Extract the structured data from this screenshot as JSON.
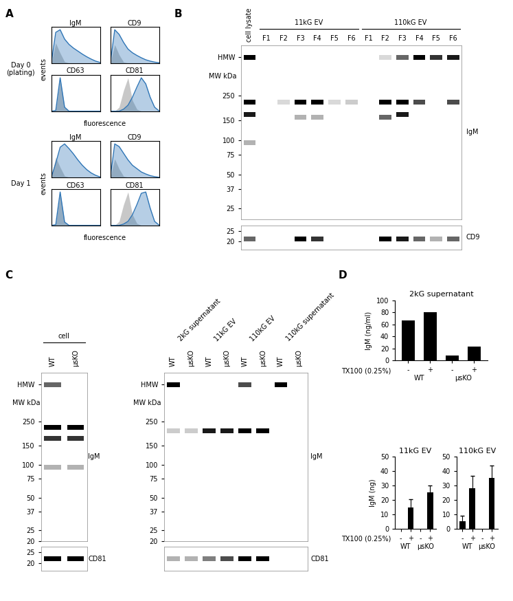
{
  "panel_labels": [
    "A",
    "B",
    "C",
    "D"
  ],
  "A": {
    "xlabel": "fluorescence",
    "ylabel": "events",
    "tick_labels": false,
    "color": "#2e75b6",
    "control_color": "#bfbfbf",
    "days": [
      {
        "label": "Day 0\n(plating)",
        "histograms": [
          {
            "title": "IgM",
            "values": [
              0,
              92,
              100,
              72,
              56,
              45,
              36,
              27,
              19,
              12,
              6,
              2
            ],
            "control": [
              0,
              60,
              30,
              4,
              0,
              0,
              0,
              0,
              0,
              0,
              0,
              0
            ]
          },
          {
            "title": "CD9",
            "values": [
              0,
              100,
              86,
              62,
              42,
              31,
              23,
              16,
              10,
              6,
              3,
              1
            ],
            "control": [
              0,
              55,
              25,
              3,
              0,
              0,
              0,
              0,
              0,
              0,
              0,
              0
            ]
          },
          {
            "title": "CD63",
            "values": [
              0,
              2,
              100,
              12,
              0,
              0,
              0,
              0,
              0,
              0,
              0,
              0
            ],
            "control": [
              0,
              2,
              95,
              10,
              0,
              0,
              0,
              0,
              0,
              0,
              0,
              0
            ]
          },
          {
            "title": "CD81",
            "values": [
              0,
              0,
              0,
              6,
              18,
              42,
              72,
              100,
              82,
              42,
              12,
              1
            ],
            "control": [
              0,
              0,
              12,
              62,
              100,
              32,
              6,
              0,
              0,
              0,
              0,
              0
            ]
          }
        ]
      },
      {
        "label": "Day 1",
        "histograms": [
          {
            "title": "IgM",
            "values": [
              0,
              42,
              90,
              100,
              86,
              70,
              52,
              36,
              23,
              13,
              6,
              1
            ],
            "control": [
              0,
              60,
              30,
              4,
              0,
              0,
              0,
              0,
              0,
              0,
              0,
              0
            ]
          },
          {
            "title": "CD9",
            "values": [
              0,
              100,
              92,
              72,
              52,
              36,
              26,
              16,
              10,
              5,
              2,
              0
            ],
            "control": [
              0,
              55,
              25,
              3,
              0,
              0,
              0,
              0,
              0,
              0,
              0,
              0
            ]
          },
          {
            "title": "CD63",
            "values": [
              0,
              2,
              100,
              10,
              0,
              0,
              0,
              0,
              0,
              0,
              0,
              0
            ],
            "control": [
              0,
              2,
              96,
              9,
              0,
              0,
              0,
              0,
              0,
              0,
              0,
              0
            ]
          },
          {
            "title": "CD81",
            "values": [
              0,
              0,
              0,
              4,
              12,
              32,
              62,
              96,
              100,
              52,
              12,
              1
            ],
            "control": [
              0,
              0,
              12,
              62,
              100,
              32,
              6,
              0,
              0,
              0,
              0,
              0
            ]
          }
        ]
      }
    ]
  },
  "B": {
    "mw_label": "MW kDa",
    "lane_groups": [
      {
        "lanes": [
          "cell lysate"
        ]
      },
      {
        "label": "11kG EV",
        "lanes": [
          "F1",
          "F2",
          "F3",
          "F4",
          "F5",
          "F6"
        ]
      },
      {
        "label": "110kG EV",
        "lanes": [
          "F1",
          "F2",
          "F3",
          "F4",
          "F5",
          "F6"
        ]
      }
    ],
    "blots": [
      {
        "target": "IgM",
        "mw_range": [
          20,
          700
        ],
        "markers": [
          "HMW",
          250,
          150,
          100,
          75,
          50,
          37,
          25
        ],
        "bands": [
          [
            {
              "mw": "HMW",
              "intensity": 1
            },
            {
              "mw": 220,
              "intensity": 1
            },
            {
              "mw": 170,
              "intensity": 0.9
            },
            {
              "mw": 95,
              "intensity": 0.3
            }
          ],
          [],
          [
            {
              "mw": 220,
              "intensity": 0.15
            }
          ],
          [
            {
              "mw": 220,
              "intensity": 1
            },
            {
              "mw": 160,
              "intensity": 0.3
            }
          ],
          [
            {
              "mw": 220,
              "intensity": 1
            },
            {
              "mw": 160,
              "intensity": 0.3
            }
          ],
          [
            {
              "mw": 220,
              "intensity": 0.15
            }
          ],
          [
            {
              "mw": 220,
              "intensity": 0.2
            }
          ],
          [],
          [
            {
              "mw": "HMW",
              "intensity": 0.15
            },
            {
              "mw": 220,
              "intensity": 1
            },
            {
              "mw": 160,
              "intensity": 0.6
            }
          ],
          [
            {
              "mw": "HMW",
              "intensity": 0.6
            },
            {
              "mw": 220,
              "intensity": 1
            },
            {
              "mw": 170,
              "intensity": 0.9
            }
          ],
          [
            {
              "mw": "HMW",
              "intensity": 1
            },
            {
              "mw": 220,
              "intensity": 0.7
            }
          ],
          [
            {
              "mw": "HMW",
              "intensity": 0.8
            }
          ],
          [
            {
              "mw": "HMW",
              "intensity": 0.9
            },
            {
              "mw": 220,
              "intensity": 0.7
            }
          ]
        ]
      },
      {
        "target": "CD9",
        "mw_range": [
          17,
          28
        ],
        "markers": [
          25,
          20
        ],
        "bands": [
          [
            {
              "mw": 21,
              "intensity": 0.6
            }
          ],
          [],
          [],
          [
            {
              "mw": 21,
              "intensity": 1
            }
          ],
          [
            {
              "mw": 21,
              "intensity": 0.8
            }
          ],
          [],
          [],
          [],
          [
            {
              "mw": 21,
              "intensity": 1
            }
          ],
          [
            {
              "mw": 21,
              "intensity": 0.9
            }
          ],
          [
            {
              "mw": 21,
              "intensity": 0.6
            }
          ],
          [
            {
              "mw": 21,
              "intensity": 0.3
            }
          ],
          [
            {
              "mw": 21,
              "intensity": 0.6
            }
          ]
        ]
      }
    ]
  },
  "C": [
    {
      "mw_label": "MW kDa",
      "lane_groups": [
        {
          "label": "cell",
          "lanes": [
            "WT",
            "μsKO"
          ]
        }
      ],
      "blots": [
        {
          "target": "IgM",
          "mw_range": [
            20,
            700
          ],
          "markers": [
            "HMW",
            250,
            150,
            100,
            75,
            50,
            37,
            25,
            20
          ],
          "bands": [
            [
              {
                "mw": "HMW",
                "intensity": 0.6
              },
              {
                "mw": 220,
                "intensity": 1
              },
              {
                "mw": 175,
                "intensity": 0.8
              },
              {
                "mw": 95,
                "intensity": 0.3
              }
            ],
            [
              {
                "mw": 220,
                "intensity": 1
              },
              {
                "mw": 175,
                "intensity": 0.8
              },
              {
                "mw": 95,
                "intensity": 0.3
              }
            ]
          ]
        },
        {
          "target": "CD81",
          "mw_range": [
            17,
            28
          ],
          "markers": [
            25,
            20
          ],
          "bands": [
            [
              {
                "mw": 22,
                "intensity": 1
              }
            ],
            [
              {
                "mw": 22,
                "intensity": 1
              }
            ]
          ]
        }
      ]
    },
    {
      "mw_label": "MW kDa",
      "lane_groups": [
        {
          "label": "2kG supernatant",
          "lanes": [
            "WT",
            "μsKO"
          ]
        },
        {
          "label": "11kG EV",
          "lanes": [
            "WT",
            "μsKO"
          ]
        },
        {
          "label": "110kG EV",
          "lanes": [
            "WT",
            "μsKO"
          ]
        },
        {
          "label": "110kG supernatant",
          "lanes": [
            "WT",
            "μsKO"
          ]
        }
      ],
      "blots": [
        {
          "target": "IgM",
          "mw_range": [
            20,
            700
          ],
          "markers": [
            "HMW",
            250,
            150,
            100,
            75,
            50,
            37,
            25,
            20
          ],
          "bands": [
            [
              {
                "mw": "HMW",
                "intensity": 1
              },
              {
                "mw": 205,
                "intensity": 0.2
              }
            ],
            [
              {
                "mw": 205,
                "intensity": 0.2
              }
            ],
            [
              {
                "mw": 205,
                "intensity": 0.9
              }
            ],
            [
              {
                "mw": 205,
                "intensity": 0.9
              }
            ],
            [
              {
                "mw": "HMW",
                "intensity": 0.7
              },
              {
                "mw": 205,
                "intensity": 1
              }
            ],
            [
              {
                "mw": 205,
                "intensity": 1
              }
            ],
            [
              {
                "mw": "HMW",
                "intensity": 1
              }
            ],
            []
          ]
        },
        {
          "target": "CD81",
          "mw_range": [
            17,
            28
          ],
          "markers": [],
          "bands": [
            [
              {
                "mw": 22,
                "intensity": 0.3
              }
            ],
            [
              {
                "mw": 22,
                "intensity": 0.3
              }
            ],
            [
              {
                "mw": 22,
                "intensity": 0.5
              }
            ],
            [
              {
                "mw": 22,
                "intensity": 0.7
              }
            ],
            [
              {
                "mw": 22,
                "intensity": 1
              }
            ],
            [
              {
                "mw": 22,
                "intensity": 1
              }
            ],
            [],
            []
          ]
        }
      ]
    }
  ],
  "chart_data": [
    {
      "type": "bar",
      "title": "2kG supernatant",
      "ylabel": "IgM (ng/ml)",
      "xlabel": "TX100 (0.25%)",
      "categories": [
        "-",
        "+",
        "-",
        "+"
      ],
      "groups": [
        "WT",
        "μsKO"
      ],
      "values": [
        67,
        81,
        9,
        23
      ],
      "color": "#000000",
      "ylim": [
        0,
        100
      ],
      "yticks": [
        0,
        20,
        40,
        60,
        80,
        100
      ]
    },
    {
      "type": "bar",
      "title": "11kG EV",
      "ylabel": "IgM (ng)",
      "xlabel": "TX100 (0.25%)",
      "categories": [
        "-",
        "+",
        "-",
        "+"
      ],
      "groups": [
        "WT",
        "μsKO"
      ],
      "values": [
        0,
        15,
        0,
        25.5
      ],
      "errors": [
        null,
        5.5,
        null,
        4.5
      ],
      "color": "#000000",
      "ylim": [
        0,
        50
      ],
      "yticks": [
        0,
        10,
        20,
        30,
        40,
        50
      ]
    },
    {
      "type": "bar",
      "title": "110kG EV",
      "categories": [
        "-",
        "+",
        "-",
        "+"
      ],
      "groups": [
        "WT",
        "μsKO"
      ],
      "values": [
        5.5,
        28,
        0,
        35.5
      ],
      "errors": [
        3.5,
        9,
        null,
        8.5
      ],
      "color": "#000000",
      "ylim": [
        0,
        50
      ],
      "yticks": [
        0,
        10,
        20,
        30,
        40,
        50
      ]
    }
  ]
}
